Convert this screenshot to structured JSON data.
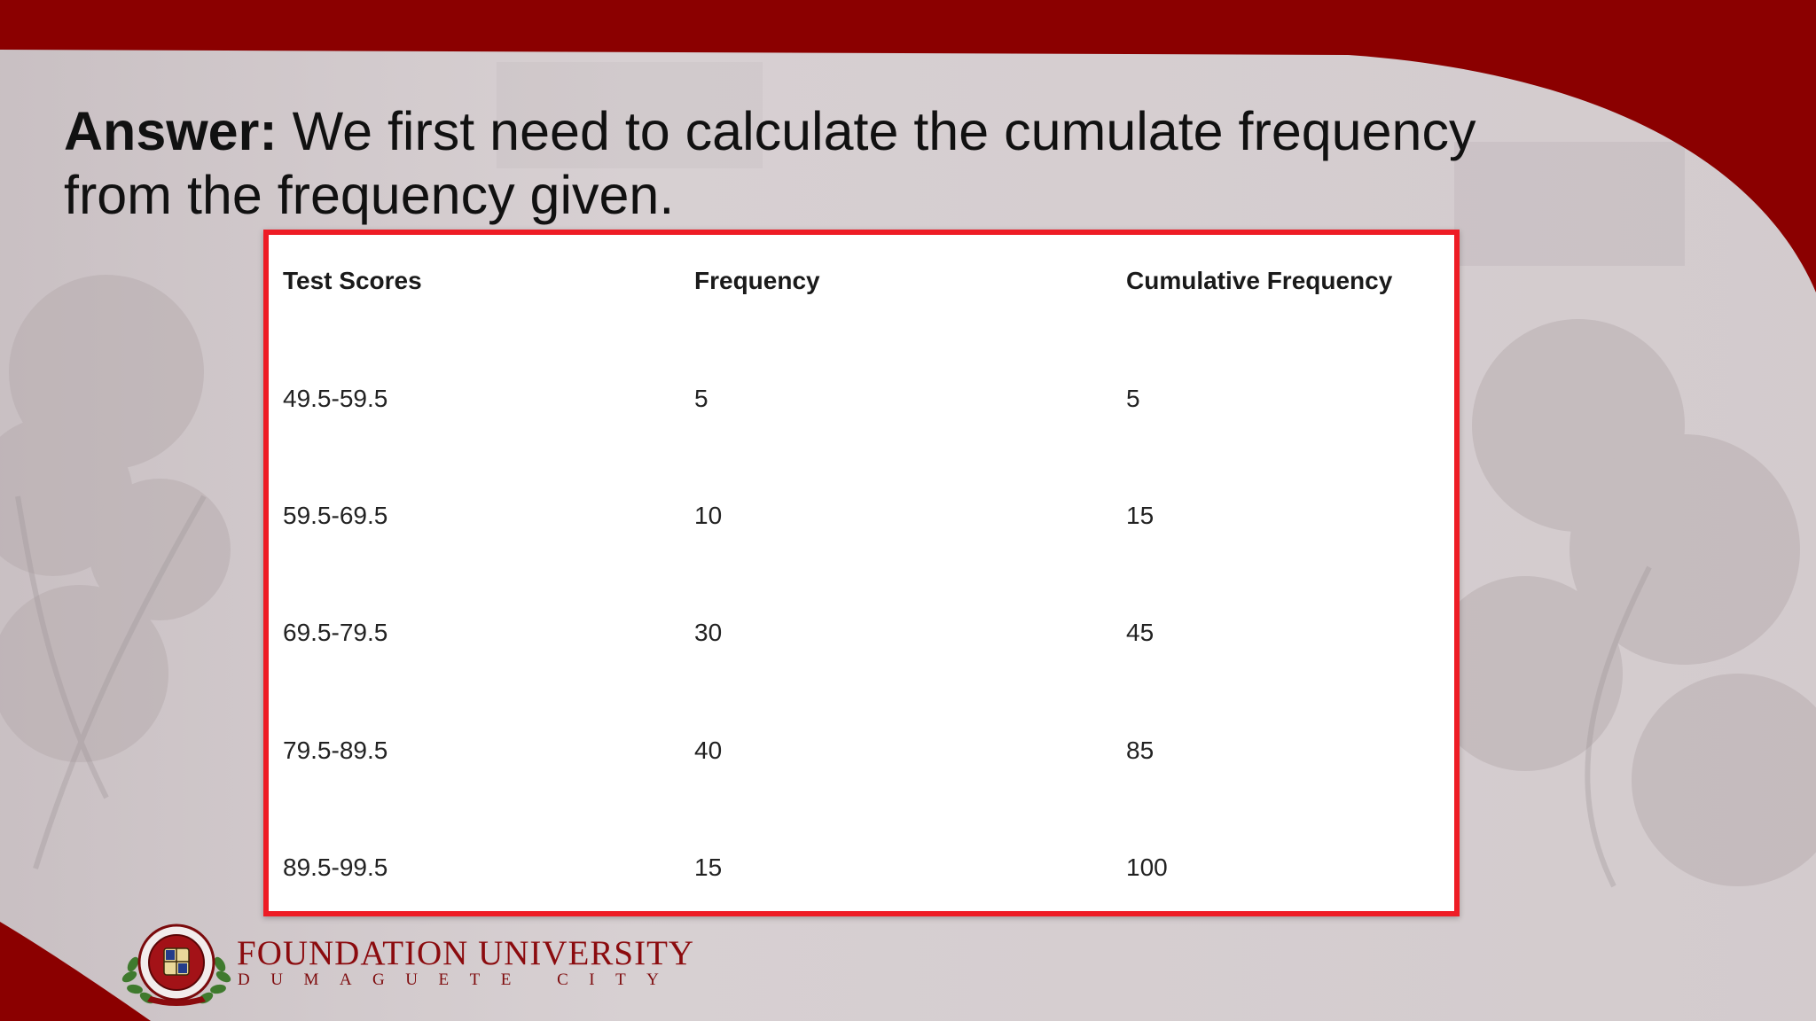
{
  "slide": {
    "title_bold": "Answer:",
    "title_text": " We first need to calculate the cumulate frequency from the frequency given."
  },
  "table": {
    "headers": [
      "Test Scores",
      "Frequency",
      "Cumulative Frequency"
    ],
    "rows": [
      [
        "49.5-59.5",
        "5",
        "5"
      ],
      [
        "59.5-69.5",
        "10",
        "15"
      ],
      [
        "69.5-79.5",
        "30",
        "45"
      ],
      [
        "79.5-89.5",
        "40",
        "85"
      ],
      [
        "89.5-99.5",
        "15",
        "100"
      ]
    ]
  },
  "footer": {
    "university_name": "FOUNDATION UNIVERSITY",
    "city": "DUMAGUETE CITY"
  },
  "colors": {
    "brand_maroon": "#8b0000",
    "table_border": "#ee1c25"
  }
}
